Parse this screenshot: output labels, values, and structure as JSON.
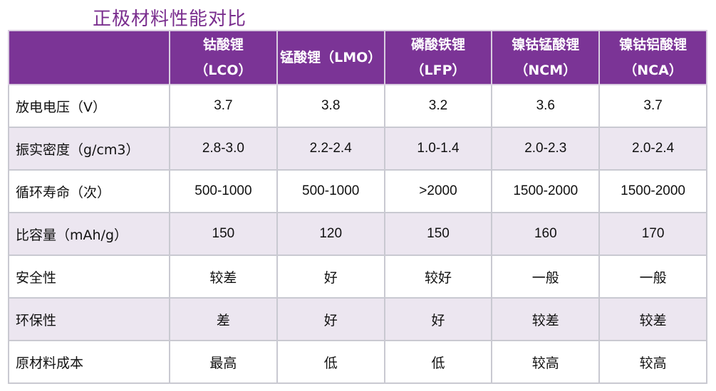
{
  "title": "正极材料性能对比",
  "header": {
    "corner": "",
    "columns": [
      {
        "name": "钴酸锂",
        "code": "（LCO）"
      },
      {
        "name": "锰酸锂（LMO）",
        "code": ""
      },
      {
        "name": "磷酸铁锂",
        "code": "（LFP）"
      },
      {
        "name": "镍钴锰酸锂",
        "code": "（NCM）"
      },
      {
        "name": "镍钴铝酸锂",
        "code": "（NCA）"
      }
    ]
  },
  "rows": [
    {
      "label": "放电电压（V）",
      "values": [
        "3.7",
        "3.8",
        "3.2",
        "3.6",
        "3.7"
      ]
    },
    {
      "label": "振实密度（g/cm3）",
      "values": [
        "2.8-3.0",
        "2.2-2.4",
        "1.0-1.4",
        "2.0-2.3",
        "2.0-2.4"
      ]
    },
    {
      "label": "循环寿命（次）",
      "values": [
        "500-1000",
        "500-1000",
        ">2000",
        "1500-2000",
        "1500-2000"
      ]
    },
    {
      "label": "比容量（mAh/g）",
      "values": [
        "150",
        "120",
        "150",
        "160",
        "170"
      ]
    },
    {
      "label": "安全性",
      "values": [
        "较差",
        "好",
        "较好",
        "一般",
        "一般"
      ]
    },
    {
      "label": "环保性",
      "values": [
        "差",
        "好",
        "好",
        "较差",
        "较差"
      ]
    },
    {
      "label": "原材料成本",
      "values": [
        "最高",
        "低",
        "低",
        "较高",
        "较高"
      ]
    }
  ],
  "colors": {
    "title": "#7a2e8e",
    "header_bg": "#7b3496",
    "header_text": "#ffffff",
    "row_alt_bg": "#ece6f0",
    "grid": "#c9c9d1"
  }
}
